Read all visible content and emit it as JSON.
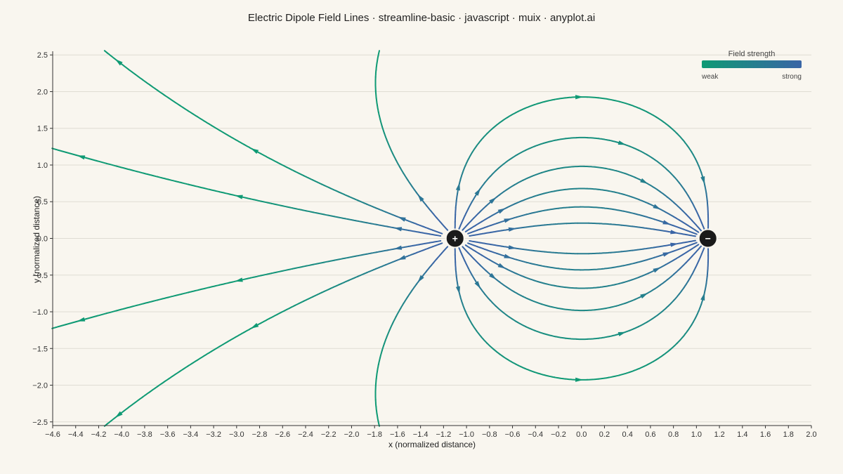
{
  "chart_data": {
    "type": "streamline",
    "title": "Electric Dipole Field Lines · streamline-basic · javascript · muix · anyplot.ai",
    "xlabel": "x (normalized distance)",
    "ylabel": "y (normalized distance)",
    "xlim": [
      -4.6,
      2.0
    ],
    "ylim": [
      -2.55,
      2.55
    ],
    "x_ticks": [
      -4.6,
      -4.4,
      -4.2,
      -4.0,
      -3.8,
      -3.6,
      -3.4,
      -3.2,
      -3.0,
      -2.8,
      -2.6,
      -2.4,
      -2.2,
      -2.0,
      -1.8,
      -1.6,
      -1.4,
      -1.2,
      -1.0,
      -0.8,
      -0.6,
      -0.4,
      -0.2,
      0.0,
      0.2,
      0.4,
      0.6,
      0.8,
      1.0,
      1.2,
      1.4,
      1.6,
      1.8,
      2.0
    ],
    "x_tick_labels": [
      "−4.6",
      "−4.4",
      "−4.2",
      "−4.0",
      "−3.8",
      "−3.6",
      "−3.4",
      "−3.2",
      "−3.0",
      "−2.8",
      "−2.6",
      "−2.4",
      "−2.2",
      "−2.0",
      "−1.8",
      "−1.6",
      "−1.4",
      "−1.2",
      "−1.0",
      "−0.8",
      "−0.6",
      "−0.4",
      "−0.2",
      "0.0",
      "0.2",
      "0.4",
      "0.6",
      "0.8",
      "1.0",
      "1.2",
      "1.4",
      "1.6",
      "1.8",
      "2.0"
    ],
    "y_ticks": [
      -2.5,
      -2.0,
      -1.5,
      -1.0,
      -0.5,
      0.0,
      0.5,
      1.0,
      1.5,
      2.0,
      2.5
    ],
    "y_tick_labels": [
      "−2.5",
      "−2.0",
      "−1.5",
      "−1.0",
      "−0.5",
      "0.0",
      "0.5",
      "1.0",
      "1.5",
      "2.0",
      "2.5"
    ],
    "grid": true,
    "charges": [
      {
        "name": "positive",
        "x": -1.1,
        "y": 0.0,
        "symbol": "+"
      },
      {
        "name": "negative",
        "x": 1.1,
        "y": 0.0,
        "symbol": "−"
      }
    ],
    "seed_angles_deg": [
      15,
      30,
      45,
      60,
      75,
      90,
      120,
      150,
      165
    ],
    "colorbar": {
      "title": "Field strength",
      "min_label": "weak",
      "max_label": "strong",
      "colors": [
        "#0f9a74",
        "#3a65a6"
      ],
      "location": "top-right"
    }
  }
}
